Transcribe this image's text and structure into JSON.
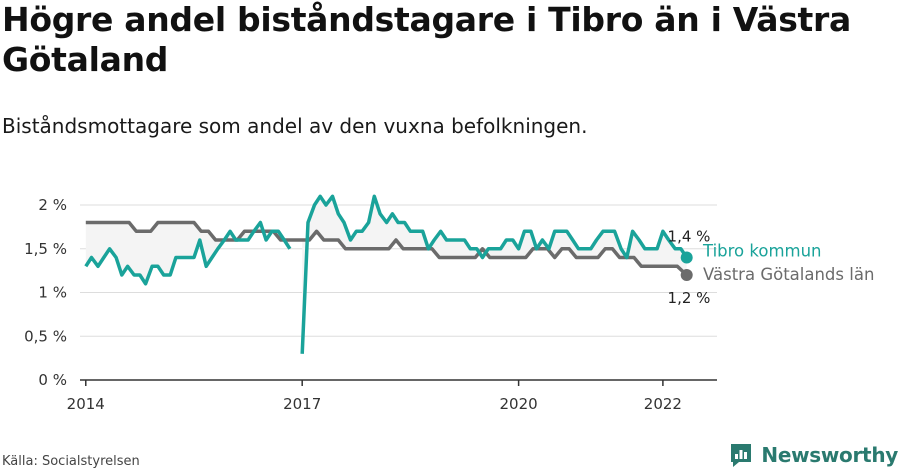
{
  "title": "Högre andel biståndstagare i Tibro än i Västra Götaland",
  "subtitle": "Biståndsmottagare som andel av den vuxna befolkningen.",
  "source": "Källa: Socialstyrelsen",
  "brand": "Newsworthy",
  "colors": {
    "tibro": "#1aa39a",
    "vg": "#6b6b6b",
    "fill": "#f4f4f4",
    "grid": "#dddddd",
    "brand": "#2a7a6f"
  },
  "chart_data": {
    "type": "line",
    "ylim": [
      0,
      2
    ],
    "yticks": [
      {
        "value": 0,
        "label": "0 %"
      },
      {
        "value": 0.5,
        "label": "0,5 %"
      },
      {
        "value": 1,
        "label": "1 %"
      },
      {
        "value": 1.5,
        "label": "1,5 %"
      },
      {
        "value": 2,
        "label": "2 %"
      }
    ],
    "xlim": [
      2013.92,
      2022.75
    ],
    "xticks": [
      {
        "value": 2014,
        "label": "2014"
      },
      {
        "value": 2017,
        "label": "2017"
      },
      {
        "value": 2020,
        "label": "2020"
      },
      {
        "value": 2022,
        "label": "2022"
      }
    ],
    "grid": true,
    "series": [
      {
        "name": "Västra Götalands län",
        "end_label": "1,2 %",
        "segments": [
          [
            [
              2014.0,
              1.8
            ],
            [
              2014.1,
              1.8
            ],
            [
              2014.2,
              1.8
            ],
            [
              2014.3,
              1.8
            ],
            [
              2014.4,
              1.8
            ],
            [
              2014.5,
              1.8
            ],
            [
              2014.6,
              1.8
            ],
            [
              2014.7,
              1.7
            ],
            [
              2014.8,
              1.7
            ],
            [
              2014.9,
              1.7
            ],
            [
              2015.0,
              1.8
            ],
            [
              2015.1,
              1.8
            ],
            [
              2015.2,
              1.8
            ],
            [
              2015.3,
              1.8
            ],
            [
              2015.4,
              1.8
            ],
            [
              2015.5,
              1.8
            ],
            [
              2015.6,
              1.7
            ],
            [
              2015.7,
              1.7
            ],
            [
              2015.8,
              1.6
            ],
            [
              2015.9,
              1.6
            ],
            [
              2016.0,
              1.6
            ],
            [
              2016.1,
              1.6
            ],
            [
              2016.2,
              1.7
            ],
            [
              2016.3,
              1.7
            ],
            [
              2016.4,
              1.7
            ],
            [
              2016.5,
              1.7
            ],
            [
              2016.6,
              1.7
            ],
            [
              2016.7,
              1.6
            ],
            [
              2016.8,
              1.6
            ],
            [
              2016.9,
              1.6
            ],
            [
              2017.0,
              1.6
            ],
            [
              2017.1,
              1.6
            ],
            [
              2017.2,
              1.7
            ],
            [
              2017.3,
              1.6
            ],
            [
              2017.4,
              1.6
            ],
            [
              2017.5,
              1.6
            ],
            [
              2017.6,
              1.5
            ],
            [
              2017.7,
              1.5
            ],
            [
              2017.8,
              1.5
            ],
            [
              2017.9,
              1.5
            ],
            [
              2018.0,
              1.5
            ],
            [
              2018.1,
              1.5
            ],
            [
              2018.2,
              1.5
            ],
            [
              2018.3,
              1.6
            ],
            [
              2018.4,
              1.5
            ],
            [
              2018.5,
              1.5
            ],
            [
              2018.6,
              1.5
            ],
            [
              2018.7,
              1.5
            ],
            [
              2018.8,
              1.5
            ],
            [
              2018.9,
              1.4
            ],
            [
              2019.0,
              1.4
            ],
            [
              2019.1,
              1.4
            ],
            [
              2019.2,
              1.4
            ],
            [
              2019.3,
              1.4
            ],
            [
              2019.4,
              1.4
            ],
            [
              2019.5,
              1.5
            ],
            [
              2019.6,
              1.4
            ],
            [
              2019.7,
              1.4
            ],
            [
              2019.8,
              1.4
            ],
            [
              2019.9,
              1.4
            ],
            [
              2020.0,
              1.4
            ],
            [
              2020.1,
              1.4
            ],
            [
              2020.2,
              1.5
            ],
            [
              2020.3,
              1.5
            ],
            [
              2020.4,
              1.5
            ],
            [
              2020.5,
              1.4
            ],
            [
              2020.6,
              1.5
            ],
            [
              2020.7,
              1.5
            ],
            [
              2020.8,
              1.4
            ],
            [
              2020.9,
              1.4
            ],
            [
              2021.0,
              1.4
            ],
            [
              2021.1,
              1.4
            ],
            [
              2021.2,
              1.5
            ],
            [
              2021.3,
              1.5
            ],
            [
              2021.4,
              1.4
            ],
            [
              2021.5,
              1.4
            ],
            [
              2021.6,
              1.4
            ],
            [
              2021.7,
              1.3
            ],
            [
              2021.8,
              1.3
            ],
            [
              2021.9,
              1.3
            ],
            [
              2022.0,
              1.3
            ],
            [
              2022.1,
              1.3
            ],
            [
              2022.2,
              1.3
            ],
            [
              2022.33,
              1.2
            ]
          ]
        ]
      },
      {
        "name": "Tibro kommun",
        "end_label": "1,4 %",
        "segments": [
          [
            [
              2014.0,
              1.3
            ],
            [
              2014.08,
              1.4
            ],
            [
              2014.17,
              1.3
            ],
            [
              2014.25,
              1.4
            ],
            [
              2014.33,
              1.5
            ],
            [
              2014.42,
              1.4
            ],
            [
              2014.5,
              1.2
            ],
            [
              2014.58,
              1.3
            ],
            [
              2014.67,
              1.2
            ],
            [
              2014.75,
              1.2
            ],
            [
              2014.83,
              1.1
            ],
            [
              2014.92,
              1.3
            ],
            [
              2015.0,
              1.3
            ],
            [
              2015.08,
              1.2
            ],
            [
              2015.17,
              1.2
            ],
            [
              2015.25,
              1.4
            ],
            [
              2015.33,
              1.4
            ],
            [
              2015.42,
              1.4
            ],
            [
              2015.5,
              1.4
            ],
            [
              2015.58,
              1.6
            ],
            [
              2015.67,
              1.3
            ],
            [
              2015.75,
              1.4
            ],
            [
              2015.83,
              1.5
            ],
            [
              2015.92,
              1.6
            ],
            [
              2016.0,
              1.7
            ],
            [
              2016.08,
              1.6
            ],
            [
              2016.17,
              1.6
            ],
            [
              2016.25,
              1.6
            ],
            [
              2016.33,
              1.7
            ],
            [
              2016.42,
              1.8
            ],
            [
              2016.5,
              1.6
            ],
            [
              2016.58,
              1.7
            ],
            [
              2016.67,
              1.7
            ],
            [
              2016.75,
              1.6
            ],
            [
              2016.83,
              1.5
            ]
          ],
          [
            [
              2017.0,
              0.3
            ],
            [
              2017.08,
              1.8
            ],
            [
              2017.17,
              2.0
            ],
            [
              2017.25,
              2.1
            ],
            [
              2017.33,
              2.0
            ],
            [
              2017.42,
              2.1
            ],
            [
              2017.5,
              1.9
            ],
            [
              2017.58,
              1.8
            ],
            [
              2017.67,
              1.6
            ],
            [
              2017.75,
              1.7
            ],
            [
              2017.83,
              1.7
            ],
            [
              2017.92,
              1.8
            ],
            [
              2018.0,
              2.1
            ],
            [
              2018.08,
              1.9
            ],
            [
              2018.17,
              1.8
            ],
            [
              2018.25,
              1.9
            ],
            [
              2018.33,
              1.8
            ],
            [
              2018.42,
              1.8
            ],
            [
              2018.5,
              1.7
            ],
            [
              2018.58,
              1.7
            ],
            [
              2018.67,
              1.7
            ],
            [
              2018.75,
              1.5
            ],
            [
              2018.83,
              1.6
            ],
            [
              2018.92,
              1.7
            ],
            [
              2019.0,
              1.6
            ],
            [
              2019.08,
              1.6
            ],
            [
              2019.17,
              1.6
            ],
            [
              2019.25,
              1.6
            ],
            [
              2019.33,
              1.5
            ],
            [
              2019.42,
              1.5
            ],
            [
              2019.5,
              1.4
            ],
            [
              2019.58,
              1.5
            ],
            [
              2019.67,
              1.5
            ],
            [
              2019.75,
              1.5
            ],
            [
              2019.83,
              1.6
            ],
            [
              2019.92,
              1.6
            ],
            [
              2020.0,
              1.5
            ],
            [
              2020.08,
              1.7
            ],
            [
              2020.17,
              1.7
            ],
            [
              2020.25,
              1.5
            ],
            [
              2020.33,
              1.6
            ],
            [
              2020.42,
              1.5
            ],
            [
              2020.5,
              1.7
            ],
            [
              2020.58,
              1.7
            ],
            [
              2020.67,
              1.7
            ],
            [
              2020.75,
              1.6
            ],
            [
              2020.83,
              1.5
            ],
            [
              2020.92,
              1.5
            ],
            [
              2021.0,
              1.5
            ],
            [
              2021.08,
              1.6
            ],
            [
              2021.17,
              1.7
            ],
            [
              2021.25,
              1.7
            ],
            [
              2021.33,
              1.7
            ],
            [
              2021.42,
              1.5
            ],
            [
              2021.5,
              1.4
            ],
            [
              2021.58,
              1.7
            ],
            [
              2021.67,
              1.6
            ],
            [
              2021.75,
              1.5
            ],
            [
              2021.83,
              1.5
            ],
            [
              2021.92,
              1.5
            ],
            [
              2022.0,
              1.7
            ],
            [
              2022.08,
              1.6
            ],
            [
              2022.17,
              1.5
            ],
            [
              2022.25,
              1.5
            ],
            [
              2022.33,
              1.4
            ]
          ]
        ]
      }
    ]
  }
}
